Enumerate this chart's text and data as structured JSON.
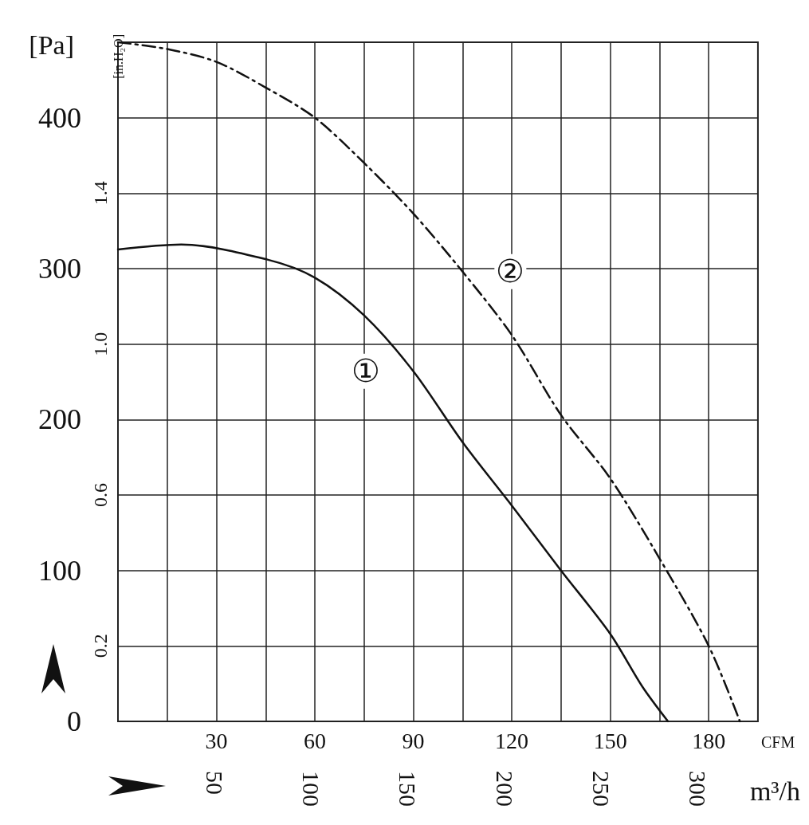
{
  "chart_data": {
    "type": "line",
    "ylabel": "[Pa]",
    "y2label": "[in.H₂O]",
    "xlabel": "CFM",
    "x2label": "m³/h",
    "grid": true,
    "xlim": [
      0,
      195
    ],
    "xticks": [
      {
        "value": 15,
        "label": null
      },
      30,
      {
        "value": 45,
        "label": null
      },
      60,
      {
        "value": 75,
        "label": null
      },
      90,
      {
        "value": 105,
        "label": null
      },
      120,
      {
        "value": 135,
        "label": null
      },
      150,
      {
        "value": 165,
        "label": null
      },
      180
    ],
    "x2lim": [
      0,
      331
    ],
    "x2ticks": [
      50,
      100,
      150,
      200,
      250,
      300
    ],
    "ylim": [
      0,
      450
    ],
    "yticks": [
      0,
      {
        "value": 50,
        "label": null
      },
      100,
      {
        "value": 150,
        "label": null
      },
      200,
      {
        "value": 250,
        "label": null
      },
      300,
      {
        "value": 350,
        "label": null
      },
      400
    ],
    "y2lim": [
      0,
      1.8
    ],
    "y2ticks": [
      0.2,
      0.6,
      {
        "value": 1,
        "label": "1.0"
      },
      1.4
    ],
    "series": [
      {
        "name": "①",
        "color": "#111111",
        "line_style": "solid",
        "x": [
          0,
          19.3,
          45.5,
          60,
          75,
          90,
          105,
          120,
          135,
          150,
          159.8,
          167.6
        ],
        "values": [
          312.7,
          316,
          306,
          294,
          269,
          232,
          185,
          143,
          100,
          58,
          23,
          0
        ]
      },
      {
        "name": "②",
        "color": "#111111",
        "line_style": "dashed",
        "x": [
          0,
          15,
          30,
          45,
          60,
          75,
          90,
          105,
          120,
          135,
          150,
          165,
          180,
          189.5
        ],
        "values": [
          450,
          445.5,
          437,
          420,
          400,
          370,
          336.5,
          298,
          256,
          203,
          161,
          108,
          50,
          0
        ]
      }
    ]
  }
}
